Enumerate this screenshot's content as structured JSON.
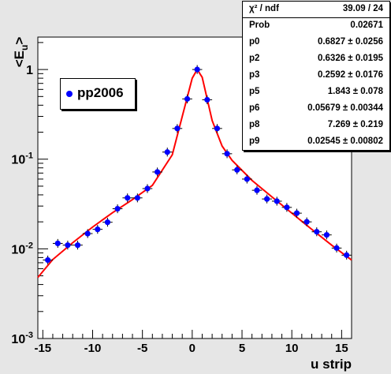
{
  "chart_data": {
    "type": "scatter",
    "ylabel": "<E_u>",
    "ylabel_main": "<E",
    "ylabel_sub": "u",
    "ylabel_end": ">",
    "xlabel": "u strip",
    "xlim": [
      -15.5,
      16
    ],
    "ylim": [
      0.001,
      2.3
    ],
    "yscale": "log",
    "x_ticks": [
      "-15",
      "-10",
      "-5",
      "0",
      "5",
      "10",
      "15"
    ],
    "x_tick_values": [
      -15,
      -10,
      -5,
      0,
      5,
      10,
      15
    ],
    "y_ticks": [
      {
        "base": "10",
        "exp": "-3",
        "value": 0.001
      },
      {
        "base": "10",
        "exp": "-2",
        "value": 0.01
      },
      {
        "base": "10",
        "exp": "-1",
        "value": 0.1
      },
      {
        "base": "1",
        "exp": "",
        "value": 1
      }
    ],
    "series": [
      {
        "name": "pp2006",
        "color": "#0000ff",
        "x": [
          -14.5,
          -13.5,
          -12.5,
          -11.5,
          -10.5,
          -9.5,
          -8.5,
          -7.5,
          -6.5,
          -5.5,
          -4.5,
          -3.5,
          -2.5,
          -1.5,
          -0.5,
          0.5,
          1.5,
          2.5,
          3.5,
          4.5,
          5.5,
          6.5,
          7.5,
          8.5,
          9.5,
          10.5,
          11.5,
          12.5,
          13.5,
          14.5,
          15.5
        ],
        "y": [
          0.0075,
          0.0115,
          0.011,
          0.011,
          0.0148,
          0.0165,
          0.0198,
          0.028,
          0.037,
          0.037,
          0.047,
          0.072,
          0.12,
          0.22,
          0.47,
          1.0,
          0.46,
          0.22,
          0.115,
          0.076,
          0.06,
          0.045,
          0.036,
          0.034,
          0.029,
          0.025,
          0.02,
          0.0155,
          0.0143,
          0.0102,
          0.0085
        ]
      }
    ],
    "fit": {
      "name": "fit",
      "color": "#ff0000",
      "x": [
        -15.5,
        -14,
        -12,
        -10,
        -8,
        -6,
        -4,
        -2,
        -1,
        0,
        0.5,
        1,
        2,
        3,
        4,
        6,
        8,
        10,
        12,
        14,
        16
      ],
      "y": [
        0.0048,
        0.0076,
        0.0117,
        0.0175,
        0.0253,
        0.0354,
        0.051,
        0.112,
        0.3,
        0.8,
        1.0,
        0.82,
        0.27,
        0.14,
        0.097,
        0.058,
        0.038,
        0.025,
        0.0165,
        0.011,
        0.0075
      ]
    }
  },
  "legend": {
    "label": "pp2006",
    "color": "#0000ff"
  },
  "stats": {
    "header": {
      "label": "χ² / ndf",
      "value": "39.09 / 24"
    },
    "rows": [
      {
        "label": "Prob",
        "value": "0.02671"
      },
      {
        "label": "p0",
        "value": "0.6827 ± 0.0256"
      },
      {
        "label": "p2",
        "value": "0.6326 ± 0.0195"
      },
      {
        "label": "p3",
        "value": "0.2592 ± 0.0176"
      },
      {
        "label": "p5",
        "value": "1.843 ± 0.078"
      },
      {
        "label": "p6",
        "value": "0.05679 ± 0.00344"
      },
      {
        "label": "p8",
        "value": "7.269 ± 0.219"
      },
      {
        "label": "p9",
        "value": "0.02545 ± 0.00802"
      }
    ]
  }
}
